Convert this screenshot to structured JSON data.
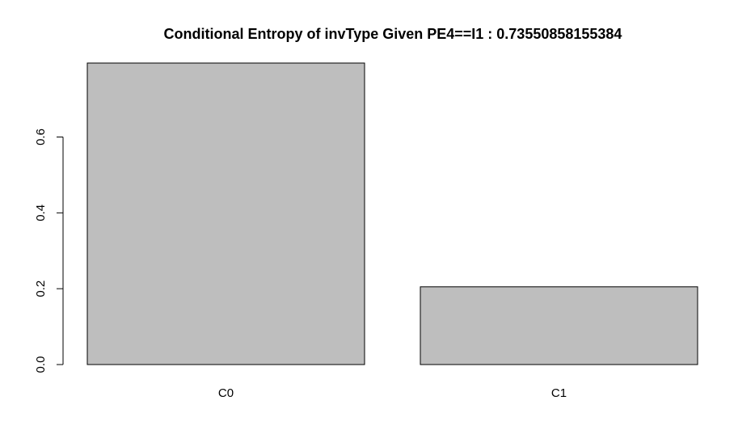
{
  "chart_data": {
    "type": "bar",
    "title": "Conditional Entropy of invType Given PE4==I1 :  0.73550858155384",
    "categories": [
      "C0",
      "C1"
    ],
    "values": [
      0.795,
      0.205
    ],
    "yticks": [
      0.0,
      0.2,
      0.4,
      0.6
    ],
    "ytick_labels": [
      "0.0",
      "0.2",
      "0.4",
      "0.6"
    ],
    "ylim": [
      0,
      0.795
    ],
    "xlabel": "",
    "ylabel": "",
    "grid": false,
    "colors": {
      "bar_fill": "#bebebe",
      "bar_stroke": "#000000"
    }
  }
}
